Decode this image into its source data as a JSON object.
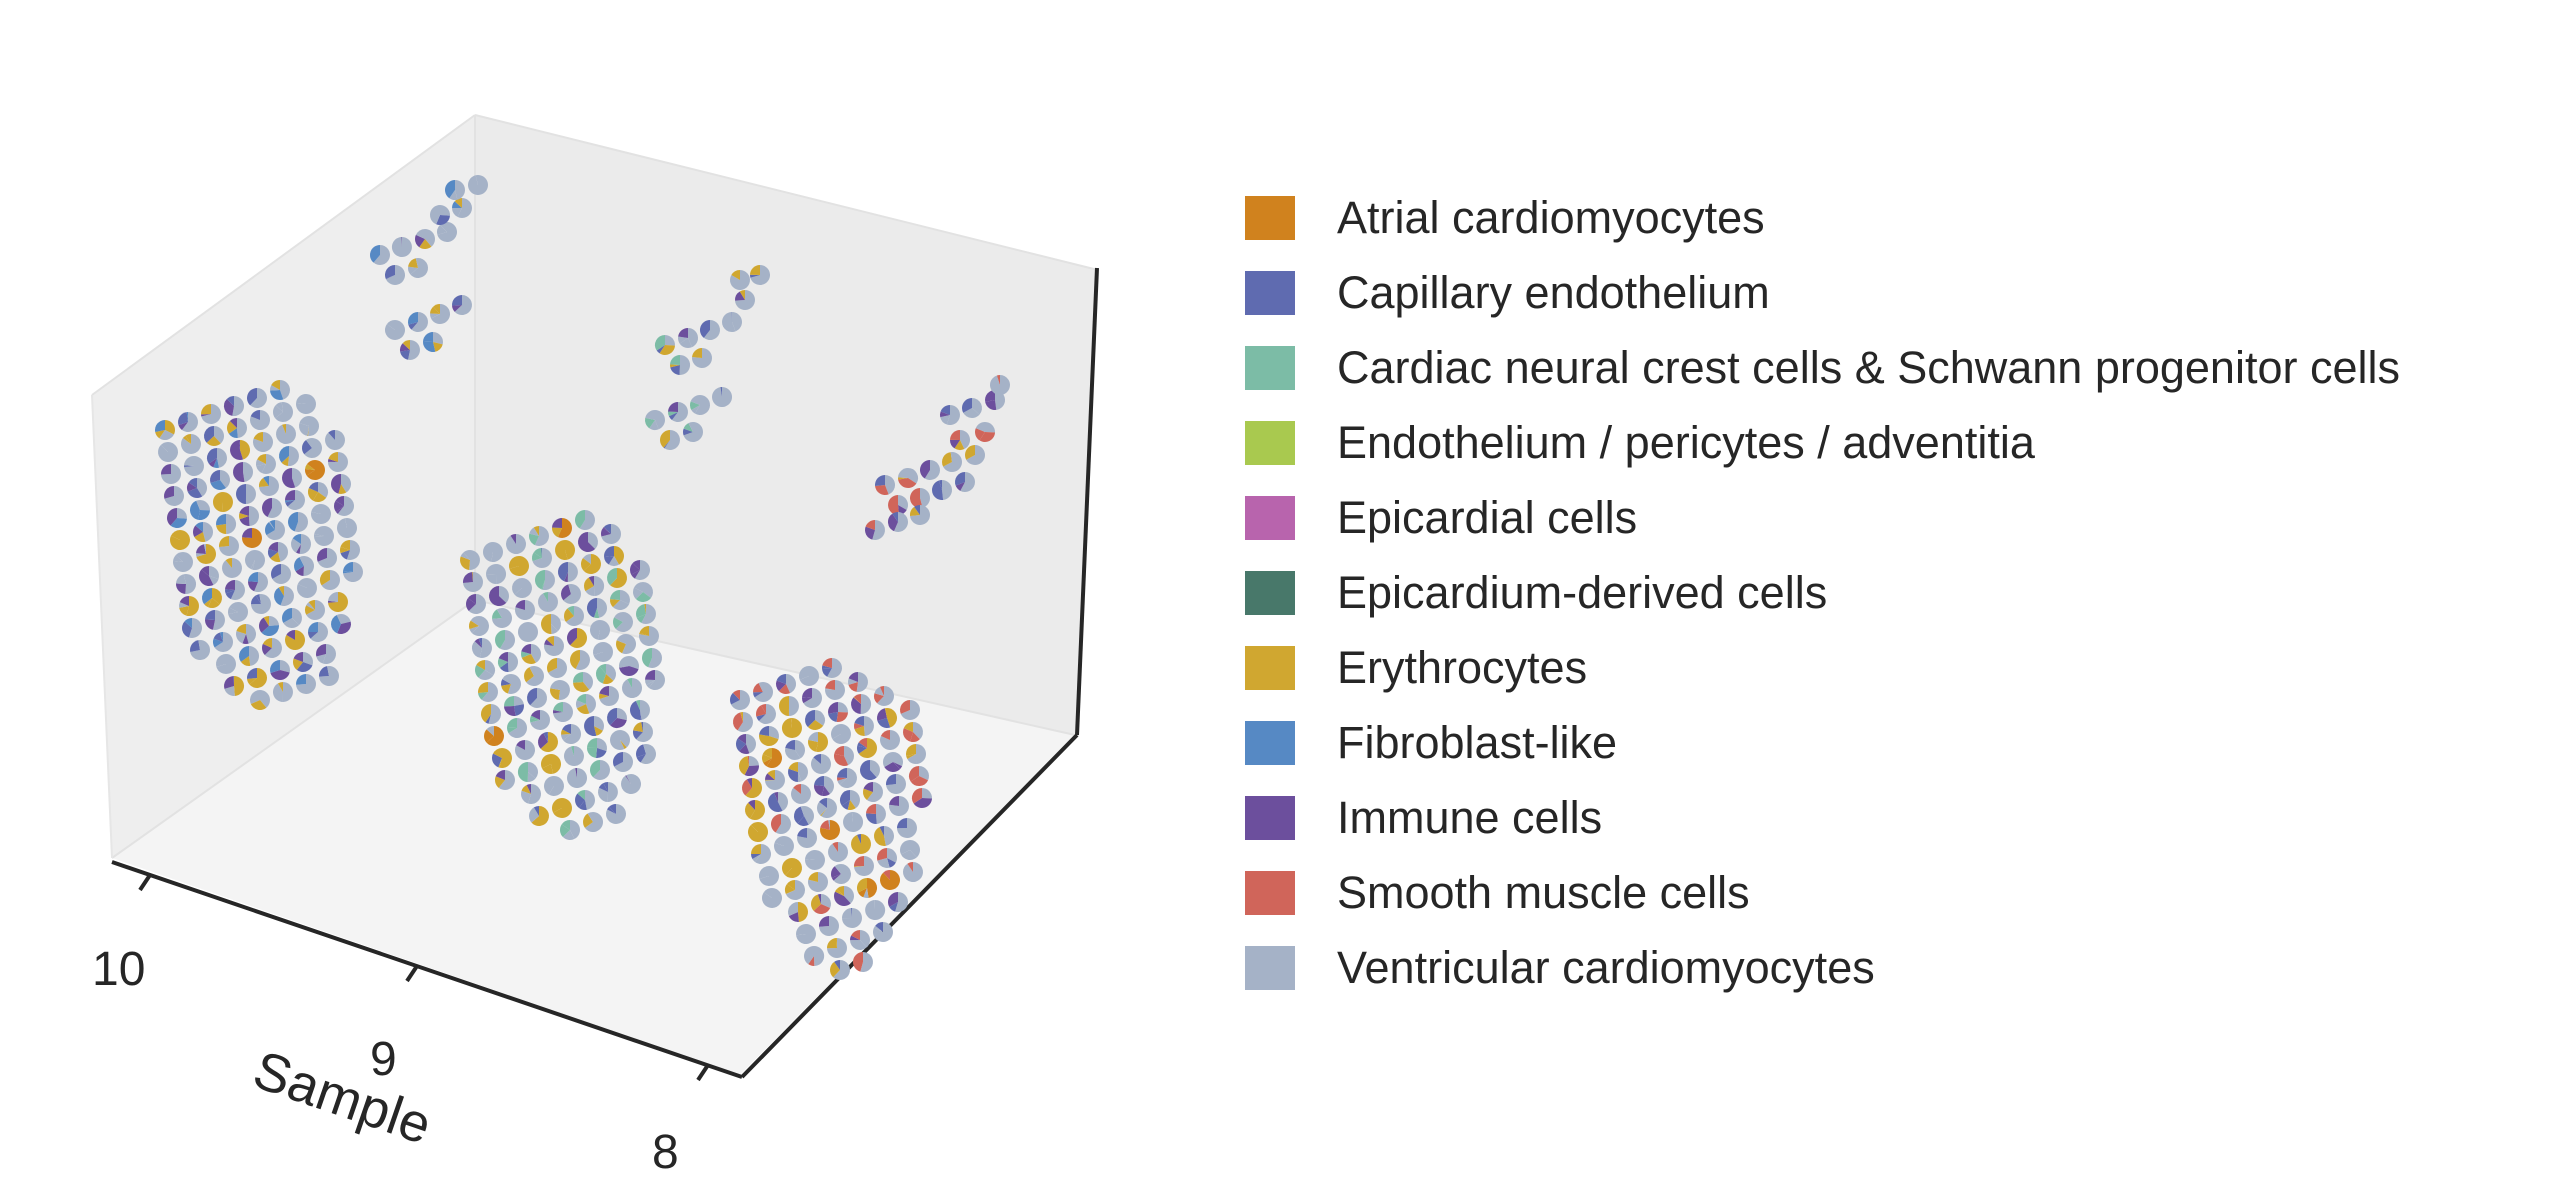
{
  "chart_data": {
    "type": "scatter",
    "subtype": "3d-spatial-pie-scatter",
    "title": "",
    "xlabel": "Sample",
    "ylabel": "",
    "zlabel": "",
    "x_ticks": [
      "10",
      "9",
      "8"
    ],
    "samples": [
      {
        "sample": "10",
        "dominant_mix": [
          "Ventricular cardiomyocytes",
          "Capillary endothelium",
          "Erythrocytes",
          "Fibroblast-like",
          "Immune cells"
        ]
      },
      {
        "sample": "9",
        "dominant_mix": [
          "Ventricular cardiomyocytes",
          "Capillary endothelium",
          "Erythrocytes",
          "Immune cells",
          "Cardiac neural crest cells & Schwann progenitor cells"
        ]
      },
      {
        "sample": "8",
        "dominant_mix": [
          "Ventricular cardiomyocytes",
          "Capillary endothelium",
          "Erythrocytes",
          "Immune cells",
          "Smooth muscle cells"
        ]
      }
    ],
    "grid": false,
    "legend_position": "right",
    "legend": [
      {
        "label": "Atrial cardiomyocytes",
        "color": "#D0821E"
      },
      {
        "label": "Capillary endothelium",
        "color": "#5F6BB0"
      },
      {
        "label": "Cardiac neural crest cells & Schwann progenitor cells",
        "color": "#7CBCA6"
      },
      {
        "label": "Endothelium / pericytes / adventitia",
        "color": "#A9C94F"
      },
      {
        "label": "Epicardial cells",
        "color": "#B864AD"
      },
      {
        "label": "Epicardium-derived cells",
        "color": "#48786A"
      },
      {
        "label": "Erythrocytes",
        "color": "#D0A730"
      },
      {
        "label": "Fibroblast-like",
        "color": "#5689C4"
      },
      {
        "label": "Immune cells",
        "color": "#6C4F9D"
      },
      {
        "label": "Smooth muscle cells",
        "color": "#D0655A"
      },
      {
        "label": "Ventricular cardiomyocytes",
        "color": "#A5B2C7"
      }
    ]
  }
}
